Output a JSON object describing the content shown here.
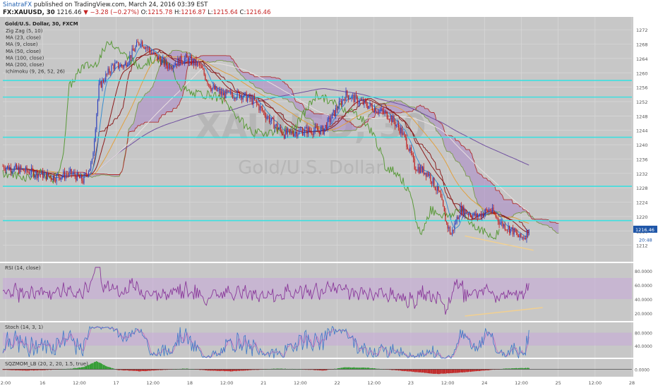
{
  "header": {
    "publisher": "SinatraFX",
    "published_text": "published on TradingView.com, March 24, 2016 03:39 EST",
    "symbol": "FX:XAUUSD, 30",
    "last": "1216.46",
    "change_arrow": "▼",
    "change": "−3.28 (−0.27%)",
    "ohlc": {
      "o_label": "O:",
      "o": "1215.78",
      "h_label": "H:",
      "h": "1216.87",
      "l_label": "L:",
      "l": "1215.64",
      "c_label": "C:",
      "c": "1216.46"
    }
  },
  "watermark": {
    "symbol": "XAUUSD, 30",
    "name": "Gold/U.S. Dollar"
  },
  "legend": {
    "title": "Gold/U.S. Dollar, 30, FXCM",
    "indicators": [
      "Zig Zag (5, 10)",
      "MA (23, close)",
      "MA (9, close)",
      "MA (50, close)",
      "MA (100, close)",
      "MA (200, close)",
      "Ichimoku (9, 26, 52, 26)"
    ]
  },
  "colors": {
    "bg": "#c7c7c7",
    "grid": "#d8d8d8",
    "bull": "#2b3fbd",
    "bear": "#c01818",
    "hline": "#3de0e0",
    "cloud": "#a986c7",
    "kijun": "#8b2020",
    "chikou": "#5a9a3a",
    "spanA": "#7a9a4a",
    "spanB": "#b03030",
    "ma9": "#3a8ed0",
    "ma23": "#8b1a1a",
    "ma50": "#e0a040",
    "ma100": "#e8e0e0",
    "ma200": "#7050a0",
    "rsi": "#8a3a9a",
    "band": "#c7a8d8",
    "stoch_k": "#3a78c8",
    "stoch_d": "#c06ab8",
    "trend": "#f2d090",
    "mom_pos": "#2a9a2a",
    "mom_neg": "#c02020"
  },
  "chart_data": [
    {
      "type": "candlestick",
      "name": "XAUUSD 30m",
      "ylim": [
        1208,
        1274
      ],
      "y_ticks": [
        1212,
        1216,
        1220,
        1224,
        1228,
        1232,
        1236,
        1240,
        1244,
        1248,
        1252,
        1256,
        1260,
        1264,
        1268,
        1272
      ],
      "x_ticks": [
        "2:00",
        "16",
        "12:00",
        "17",
        "12:00",
        "18",
        "12:00",
        "21",
        "12:00",
        "22",
        "12:00",
        "23",
        "12:00",
        "24",
        "12:00",
        "25",
        "12:00",
        "28"
      ],
      "price_anchors": [
        [
          0,
          1234
        ],
        [
          15,
          1233
        ],
        [
          30,
          1232
        ],
        [
          45,
          1231
        ],
        [
          60,
          1232
        ],
        [
          70,
          1230
        ],
        [
          78,
          1235
        ],
        [
          84,
          1256
        ],
        [
          96,
          1262
        ],
        [
          106,
          1262
        ],
        [
          120,
          1269
        ],
        [
          132,
          1265
        ],
        [
          144,
          1262
        ],
        [
          160,
          1264
        ],
        [
          172,
          1262
        ],
        [
          182,
          1256
        ],
        [
          192,
          1254
        ],
        [
          208,
          1254
        ],
        [
          220,
          1252
        ],
        [
          236,
          1246
        ],
        [
          246,
          1243
        ],
        [
          266,
          1244
        ],
        [
          280,
          1244
        ],
        [
          288,
          1248
        ],
        [
          300,
          1254
        ],
        [
          312,
          1252
        ],
        [
          326,
          1250
        ],
        [
          338,
          1248
        ],
        [
          348,
          1244
        ],
        [
          354,
          1240
        ],
        [
          360,
          1234
        ],
        [
          372,
          1232
        ],
        [
          382,
          1226
        ],
        [
          388,
          1218
        ],
        [
          392,
          1215
        ],
        [
          400,
          1222
        ],
        [
          414,
          1220
        ],
        [
          426,
          1222
        ],
        [
          436,
          1218
        ],
        [
          446,
          1216
        ],
        [
          452,
          1214
        ],
        [
          456,
          1214.5
        ],
        [
          460,
          1216.46
        ]
      ],
      "horizontal_levels": [
        {
          "value": 1257.88,
          "label": "1257.88"
        },
        {
          "value": 1253.25,
          "label": "1253.25"
        },
        {
          "value": 1242.06,
          "label": "1242.06"
        },
        {
          "value": 1228.42,
          "label": "1228.42"
        },
        {
          "value": 1218.87,
          "label": "1218.87"
        }
      ],
      "last_price": {
        "value": 1216.46,
        "label": "1216.46"
      },
      "countdown": {
        "value": 1213.6,
        "label": "20:48"
      },
      "support_trendline": [
        [
          1214.6,
          404
        ],
        [
          1210.6,
          464
        ]
      ]
    },
    {
      "type": "line",
      "name": "RSI",
      "legend": "RSI (14, close)",
      "ylim": [
        10,
        90
      ],
      "y_ticks": [
        {
          "value": 80,
          "label": "80.0000"
        },
        {
          "value": 60,
          "label": "60.0000"
        },
        {
          "value": 40,
          "label": "40.0000"
        },
        {
          "value": 20,
          "label": "20.0000"
        }
      ],
      "band": [
        40,
        70
      ],
      "trendline": [
        [
          16,
          404
        ],
        [
          28,
          472
        ]
      ]
    },
    {
      "type": "line",
      "name": "Stoch",
      "legend": "Stoch (14, 3, 1)",
      "ylim": [
        0,
        110
      ],
      "y_ticks": [
        {
          "value": 80,
          "label": "80.0000"
        },
        {
          "value": 40,
          "label": "40.0000"
        }
      ],
      "band": [
        40,
        80
      ]
    },
    {
      "type": "bar",
      "name": "SQZMOM_LB",
      "legend": "SQZMOM_LB (20, 2, 20, 1.5, true)",
      "ylim": [
        -10,
        14
      ],
      "y_ticks": [
        {
          "value": 0,
          "label": "0.0000"
        }
      ],
      "anchors": [
        [
          0,
          -1
        ],
        [
          20,
          -2
        ],
        [
          40,
          -1
        ],
        [
          60,
          1
        ],
        [
          70,
          3
        ],
        [
          76,
          7
        ],
        [
          82,
          12
        ],
        [
          90,
          5
        ],
        [
          100,
          -1
        ],
        [
          120,
          -3
        ],
        [
          140,
          -1
        ],
        [
          160,
          1
        ],
        [
          180,
          -2
        ],
        [
          200,
          -3
        ],
        [
          220,
          -1
        ],
        [
          240,
          1
        ],
        [
          260,
          0
        ],
        [
          280,
          -2
        ],
        [
          300,
          3
        ],
        [
          320,
          2
        ],
        [
          340,
          -1
        ],
        [
          360,
          -4
        ],
        [
          380,
          -7
        ],
        [
          400,
          -5
        ],
        [
          420,
          -2
        ],
        [
          440,
          1
        ],
        [
          460,
          2
        ]
      ]
    }
  ]
}
